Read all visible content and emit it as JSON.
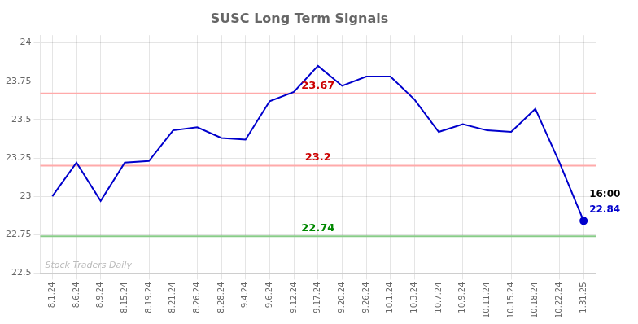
{
  "chart_data": {
    "type": "line",
    "title": "SUSC Long Term Signals",
    "categories": [
      "8.1.24",
      "8.6.24",
      "8.9.24",
      "8.15.24",
      "8.19.24",
      "8.21.24",
      "8.26.24",
      "8.28.24",
      "9.4.24",
      "9.6.24",
      "9.12.24",
      "9.17.24",
      "9.20.24",
      "9.26.24",
      "10.1.24",
      "10.3.24",
      "10.7.24",
      "10.9.24",
      "10.11.24",
      "10.15.24",
      "10.18.24",
      "10.22.24",
      "1.31.25"
    ],
    "values": [
      23.0,
      23.22,
      22.97,
      23.22,
      23.23,
      23.43,
      23.45,
      23.38,
      23.37,
      23.62,
      23.68,
      23.85,
      23.72,
      23.78,
      23.78,
      23.63,
      23.42,
      23.47,
      23.43,
      23.42,
      23.57,
      23.22,
      22.84
    ],
    "color": "#0000cc",
    "ylim": [
      22.5,
      24.05
    ],
    "yticks": [
      22.5,
      22.75,
      23,
      23.25,
      23.5,
      23.75,
      24
    ],
    "grid": true,
    "reference_lines": [
      {
        "value": 23.67,
        "label": "23.67",
        "color": "#ffaaaa",
        "label_color": "#cc0000"
      },
      {
        "value": 23.2,
        "label": "23.2",
        "color": "#ffaaaa",
        "label_color": "#cc0000"
      },
      {
        "value": 22.74,
        "label": "22.74",
        "color": "#88cc88",
        "label_color": "#008800"
      }
    ],
    "annotations": [
      {
        "text": "16:00",
        "color": "#000000"
      },
      {
        "text": "22.84",
        "color": "#0000cc"
      }
    ],
    "watermark": {
      "text": "Stock Traders Daily",
      "color": "#bbbbbb"
    }
  }
}
